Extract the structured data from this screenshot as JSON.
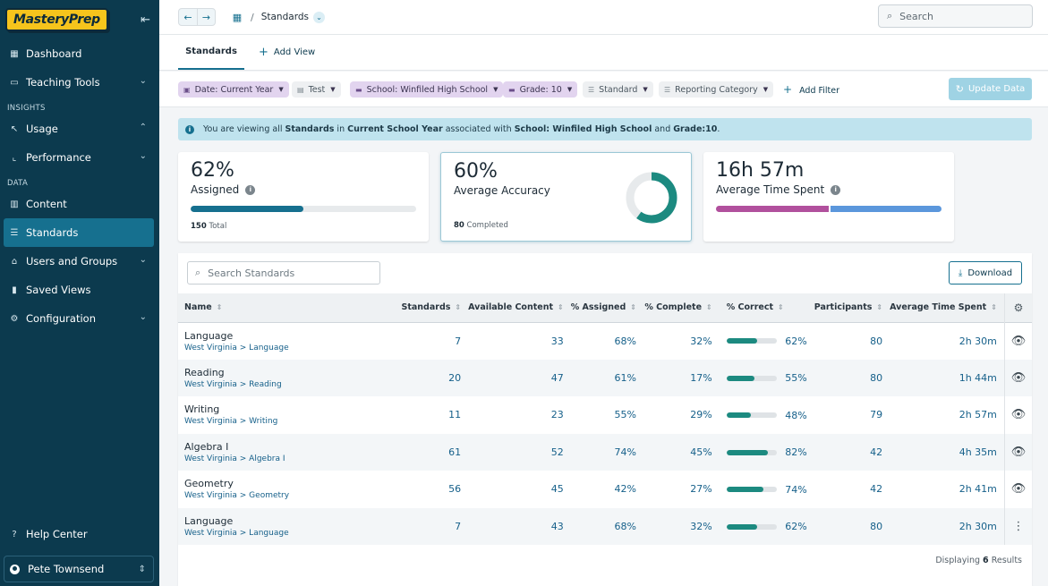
{
  "app": {
    "logo_text": "MasteryPrep"
  },
  "sidebar": {
    "items_top": [
      {
        "label": "Dashboard",
        "icon": "dashboard-icon"
      },
      {
        "label": "Teaching Tools",
        "icon": "teaching-tools-icon"
      }
    ],
    "section_insights": "INSIGHTS",
    "insights_items": [
      {
        "label": "Usage",
        "icon": "usage-icon"
      },
      {
        "label": "Performance",
        "icon": "performance-icon"
      }
    ],
    "section_data": "DATA",
    "data_items": [
      {
        "label": "Content",
        "icon": "content-icon"
      },
      {
        "label": "Standards",
        "icon": "standards-icon",
        "active": true
      },
      {
        "label": "Users and Groups",
        "icon": "users-groups-icon"
      },
      {
        "label": "Saved Views",
        "icon": "bookmark-icon"
      },
      {
        "label": "Configuration",
        "icon": "configuration-icon"
      }
    ],
    "help_label": "Help Center",
    "user_name": "Pete Townsend"
  },
  "topbar": {
    "breadcrumb": "Standards",
    "search_placeholder": "Search"
  },
  "tabs": {
    "active_label": "Standards",
    "add_label": "Add View"
  },
  "filters": {
    "chips": [
      "Date: Current Year",
      "Test",
      "School: Winfiled High School",
      "Grade: 10",
      "Standard",
      "Reporting Category"
    ],
    "add_filter_label": "Add Filter",
    "update_label": "Update Data"
  },
  "banner": {
    "t1": "You are viewing all ",
    "b1": "Standards",
    "t2": " in ",
    "b2": "Current School Year",
    "t3": " associated with ",
    "b3": "School: Winfiled High School",
    "t4": " and ",
    "b4": "Grade:10",
    "t5": "."
  },
  "kpis": {
    "assigned": {
      "value": "62%",
      "label": "Assigned",
      "footer_num": "150",
      "footer_text": " Total",
      "progress": 0.5
    },
    "accuracy": {
      "value": "60%",
      "label": "Average Accuracy",
      "footer_num": "80",
      "footer_text": " Completed",
      "progress": 0.6
    },
    "time": {
      "value": "16h 57m",
      "label": "Average Time Spent",
      "split": 0.5
    }
  },
  "colors": {
    "accent": "#16708f",
    "sidebar": "#0c3a4e",
    "correct_bar": "#1c8a80",
    "time_a": "#b1509d",
    "time_b": "#5b97dc"
  },
  "table": {
    "search_placeholder": "Search Standards",
    "download_label": "Download",
    "columns": [
      "Name",
      "Standards",
      "Available Content",
      "% Assigned",
      "% Complete",
      "% Correct",
      "Participants",
      "Average Time Spent"
    ],
    "rows": [
      {
        "name": "Language",
        "path": "West Virginia > Language",
        "standards": "7",
        "available": "33",
        "assigned": "68%",
        "complete": "32%",
        "correct": "62%",
        "correct_value": 0.62,
        "participants": "80",
        "time": "2h 30m",
        "action_icon": "eye-icon"
      },
      {
        "name": "Reading",
        "path": "West Virginia > Reading",
        "standards": "20",
        "available": "47",
        "assigned": "61%",
        "complete": "17%",
        "correct": "55%",
        "correct_value": 0.55,
        "participants": "80",
        "time": "1h 44m",
        "action_icon": "eye-icon"
      },
      {
        "name": "Writing",
        "path": "West Virginia > Writing",
        "standards": "11",
        "available": "23",
        "assigned": "55%",
        "complete": "29%",
        "correct": "48%",
        "correct_value": 0.48,
        "participants": "79",
        "time": "2h 57m",
        "action_icon": "eye-icon"
      },
      {
        "name": "Algebra I",
        "path": "West Virginia > Algebra I",
        "standards": "61",
        "available": "52",
        "assigned": "74%",
        "complete": "45%",
        "correct": "82%",
        "correct_value": 0.82,
        "participants": "42",
        "time": "4h 35m",
        "action_icon": "eye-icon"
      },
      {
        "name": "Geometry",
        "path": "West Virginia > Geometry",
        "standards": "56",
        "available": "45",
        "assigned": "42%",
        "complete": "27%",
        "correct": "74%",
        "correct_value": 0.74,
        "participants": "42",
        "time": "2h 41m",
        "action_icon": "eye-icon"
      },
      {
        "name": "Language",
        "path": "West Virginia > Language",
        "standards": "7",
        "available": "43",
        "assigned": "68%",
        "complete": "32%",
        "correct": "62%",
        "correct_value": 0.62,
        "participants": "80",
        "time": "2h 30m",
        "action_icon": "more-vertical-icon"
      }
    ],
    "results_prefix": "Displaying ",
    "results_count": "6",
    "results_suffix": " Results"
  }
}
